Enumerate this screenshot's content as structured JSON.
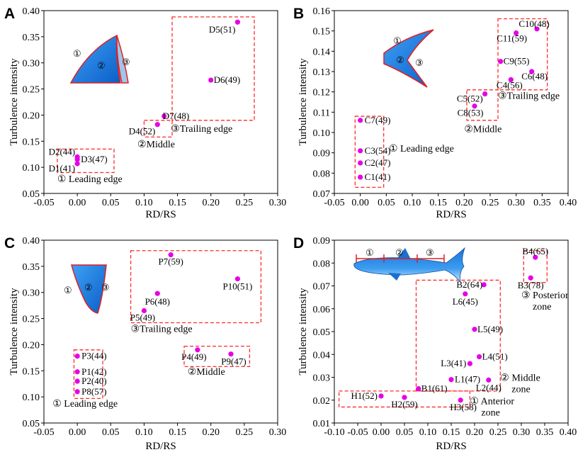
{
  "colors": {
    "point": "#e600e6",
    "box": "#ff2a2a",
    "fin_fill": "#1e7fe0",
    "fin_edge": "#e02020",
    "axis": "#000000"
  },
  "chart_data": [
    {
      "panel": "A",
      "type": "scatter",
      "xlabel": "RD/RS",
      "ylabel": "Turbulence intensity",
      "xlim": [
        -0.05,
        0.3
      ],
      "ylim": [
        0.05,
        0.4
      ],
      "xticks": [
        -0.05,
        0,
        0.05,
        0.1,
        0.15,
        0.2,
        0.25,
        0.3
      ],
      "yticks": [
        0.05,
        0.1,
        0.15,
        0.2,
        0.25,
        0.3,
        0.35,
        0.4
      ],
      "xtick_labels": [
        "-0.05",
        "0.00",
        "0.05",
        "0.10",
        "0.15",
        "0.20",
        "0.25",
        "0.30"
      ],
      "ytick_labels": [
        "0.05",
        "0.10",
        "0.15",
        "0.20",
        "0.25",
        "0.30",
        "0.35",
        "0.40"
      ],
      "points": [
        {
          "label": "D1(41)",
          "x": 0.0,
          "y": 0.107
        },
        {
          "label": "D2(44)",
          "x": 0.0,
          "y": 0.12
        },
        {
          "label": "D3(47)",
          "x": 0.0,
          "y": 0.115
        },
        {
          "label": "D4(52)",
          "x": 0.12,
          "y": 0.182
        },
        {
          "label": "D5(51)",
          "x": 0.24,
          "y": 0.378
        },
        {
          "label": "D6(49)",
          "x": 0.2,
          "y": 0.267
        },
        {
          "label": "D7(48)",
          "x": 0.13,
          "y": 0.198
        }
      ],
      "regions": [
        {
          "label": "① Leading edge",
          "x0": -0.03,
          "x1": 0.055,
          "y0": 0.09,
          "y1": 0.135
        },
        {
          "label": "②Middle",
          "x0": 0.1,
          "x1": 0.142,
          "y0": 0.158,
          "y1": 0.19
        },
        {
          "label": "③Trailing edge",
          "x0": 0.142,
          "x1": 0.265,
          "y0": 0.19,
          "y1": 0.388
        }
      ],
      "fin_labels": [
        "①",
        "②",
        "③"
      ]
    },
    {
      "panel": "B",
      "type": "scatter",
      "xlabel": "RD/RS",
      "ylabel": "Turbulence intensity",
      "xlim": [
        -0.05,
        0.4
      ],
      "ylim": [
        0.07,
        0.16
      ],
      "xticks": [
        -0.05,
        0,
        0.05,
        0.1,
        0.15,
        0.2,
        0.25,
        0.3,
        0.35,
        0.4
      ],
      "yticks": [
        0.07,
        0.08,
        0.09,
        0.1,
        0.11,
        0.12,
        0.13,
        0.14,
        0.15,
        0.16
      ],
      "xtick_labels": [
        "-0.05",
        "0.00",
        "0.05",
        "0.10",
        "0.15",
        "0.20",
        "0.25",
        "0.30",
        "0.35",
        "0.40"
      ],
      "ytick_labels": [
        "0.07",
        "0.08",
        "0.09",
        "0.10",
        "0.11",
        "0.12",
        "0.13",
        "0.14",
        "0.15",
        "0.16"
      ],
      "points": [
        {
          "label": "C1(41)",
          "x": 0.0,
          "y": 0.078
        },
        {
          "label": "C2(47)",
          "x": 0.0,
          "y": 0.085
        },
        {
          "label": "C3(54)",
          "x": 0.0,
          "y": 0.091
        },
        {
          "label": "C4(56)",
          "x": 0.29,
          "y": 0.126
        },
        {
          "label": "C5(52)",
          "x": 0.24,
          "y": 0.119
        },
        {
          "label": "C6(48)",
          "x": 0.33,
          "y": 0.13
        },
        {
          "label": "C7(49)",
          "x": 0.0,
          "y": 0.106
        },
        {
          "label": "C8(53)",
          "x": 0.22,
          "y": 0.113
        },
        {
          "label": "C9(55)",
          "x": 0.27,
          "y": 0.135
        },
        {
          "label": "C10(48)",
          "x": 0.34,
          "y": 0.151
        },
        {
          "label": "C11(59)",
          "x": 0.3,
          "y": 0.149
        }
      ],
      "regions": [
        {
          "label": "① Leading edge",
          "x0": -0.01,
          "x1": 0.045,
          "y0": 0.073,
          "y1": 0.108
        },
        {
          "label": "②Middle",
          "x0": 0.205,
          "x1": 0.265,
          "y0": 0.106,
          "y1": 0.121
        },
        {
          "label": "③Trailing edge",
          "x0": 0.265,
          "x1": 0.36,
          "y0": 0.121,
          "y1": 0.156
        }
      ],
      "fin_labels": [
        "①",
        "②",
        "③"
      ]
    },
    {
      "panel": "C",
      "type": "scatter",
      "xlabel": "RD/RS",
      "ylabel": "Turbulence intensity",
      "xlim": [
        -0.05,
        0.3
      ],
      "ylim": [
        0.05,
        0.4
      ],
      "xticks": [
        -0.05,
        0,
        0.05,
        0.1,
        0.15,
        0.2,
        0.25,
        0.3
      ],
      "yticks": [
        0.05,
        0.1,
        0.15,
        0.2,
        0.25,
        0.3,
        0.35,
        0.4
      ],
      "xtick_labels": [
        "-0.05",
        "0.00",
        "0.05",
        "0.10",
        "0.15",
        "0.20",
        "0.25",
        "0.30"
      ],
      "ytick_labels": [
        "0.05",
        "0.10",
        "0.15",
        "0.20",
        "0.25",
        "0.30",
        "0.35",
        "0.40"
      ],
      "points": [
        {
          "label": "P1(42)",
          "x": 0.0,
          "y": 0.148
        },
        {
          "label": "P2(40)",
          "x": 0.0,
          "y": 0.13
        },
        {
          "label": "P3(44)",
          "x": 0.0,
          "y": 0.178
        },
        {
          "label": "P4(49)",
          "x": 0.18,
          "y": 0.19
        },
        {
          "label": "P5(49)",
          "x": 0.1,
          "y": 0.265
        },
        {
          "label": "P6(48)",
          "x": 0.12,
          "y": 0.298
        },
        {
          "label": "P7(59)",
          "x": 0.14,
          "y": 0.372
        },
        {
          "label": "P8(57)",
          "x": 0.0,
          "y": 0.11
        },
        {
          "label": "P9(47)",
          "x": 0.23,
          "y": 0.182
        },
        {
          "label": "P10(51)",
          "x": 0.24,
          "y": 0.326
        }
      ],
      "regions": [
        {
          "label": "① Leading edge",
          "x0": -0.005,
          "x1": 0.038,
          "y0": 0.097,
          "y1": 0.19
        },
        {
          "label": "②Middle",
          "x0": 0.16,
          "x1": 0.258,
          "y0": 0.158,
          "y1": 0.197
        },
        {
          "label": "③Trailing edge",
          "x0": 0.08,
          "x1": 0.275,
          "y0": 0.242,
          "y1": 0.38
        }
      ],
      "fin_labels": [
        "①",
        "②",
        "③"
      ]
    },
    {
      "panel": "D",
      "type": "scatter",
      "xlabel": "RD/RS",
      "ylabel": "Turbulence intensity",
      "xlim": [
        -0.1,
        0.4
      ],
      "ylim": [
        0.01,
        0.09
      ],
      "xticks": [
        -0.1,
        -0.05,
        0,
        0.05,
        0.1,
        0.15,
        0.2,
        0.25,
        0.3,
        0.35,
        0.4
      ],
      "yticks": [
        0.01,
        0.02,
        0.03,
        0.04,
        0.05,
        0.06,
        0.07,
        0.08,
        0.09
      ],
      "xtick_labels": [
        "-0.10",
        "-0.05",
        "0.00",
        "0.05",
        "0.10",
        "0.15",
        "0.20",
        "0.25",
        "0.30",
        "0.35",
        "0.40"
      ],
      "ytick_labels": [
        "0.01",
        "0.02",
        "0.03",
        "0.04",
        "0.05",
        "0.06",
        "0.07",
        "0.08",
        "0.09"
      ],
      "points": [
        {
          "label": "H1(52)",
          "x": 0.0,
          "y": 0.0218
        },
        {
          "label": "H2(59)",
          "x": 0.05,
          "y": 0.0212
        },
        {
          "label": "H3(58)",
          "x": 0.17,
          "y": 0.02
        },
        {
          "label": "B1(61)",
          "x": 0.08,
          "y": 0.025
        },
        {
          "label": "L1(47)",
          "x": 0.15,
          "y": 0.029
        },
        {
          "label": "L2(44)",
          "x": 0.23,
          "y": 0.0288
        },
        {
          "label": "L3(41)",
          "x": 0.19,
          "y": 0.036
        },
        {
          "label": "L4(51)",
          "x": 0.21,
          "y": 0.039
        },
        {
          "label": "L5(49)",
          "x": 0.2,
          "y": 0.051
        },
        {
          "label": "L6(45)",
          "x": 0.18,
          "y": 0.0665
        },
        {
          "label": "B2(64)",
          "x": 0.22,
          "y": 0.0705
        },
        {
          "label": "B3(78)",
          "x": 0.32,
          "y": 0.0735
        },
        {
          "label": "B4(65)",
          "x": 0.33,
          "y": 0.0825
        }
      ],
      "regions": [
        {
          "label": "① Anterior zone",
          "x0": -0.09,
          "x1": 0.19,
          "y0": 0.017,
          "y1": 0.024
        },
        {
          "label": "② Middle zone",
          "x0": 0.075,
          "x1": 0.255,
          "y0": 0.024,
          "y1": 0.0725
        },
        {
          "label": "③ Posterior zone",
          "x0": 0.305,
          "x1": 0.355,
          "y0": 0.0715,
          "y1": 0.0855
        }
      ],
      "fin_labels": [
        "①",
        "②",
        "③"
      ]
    }
  ]
}
